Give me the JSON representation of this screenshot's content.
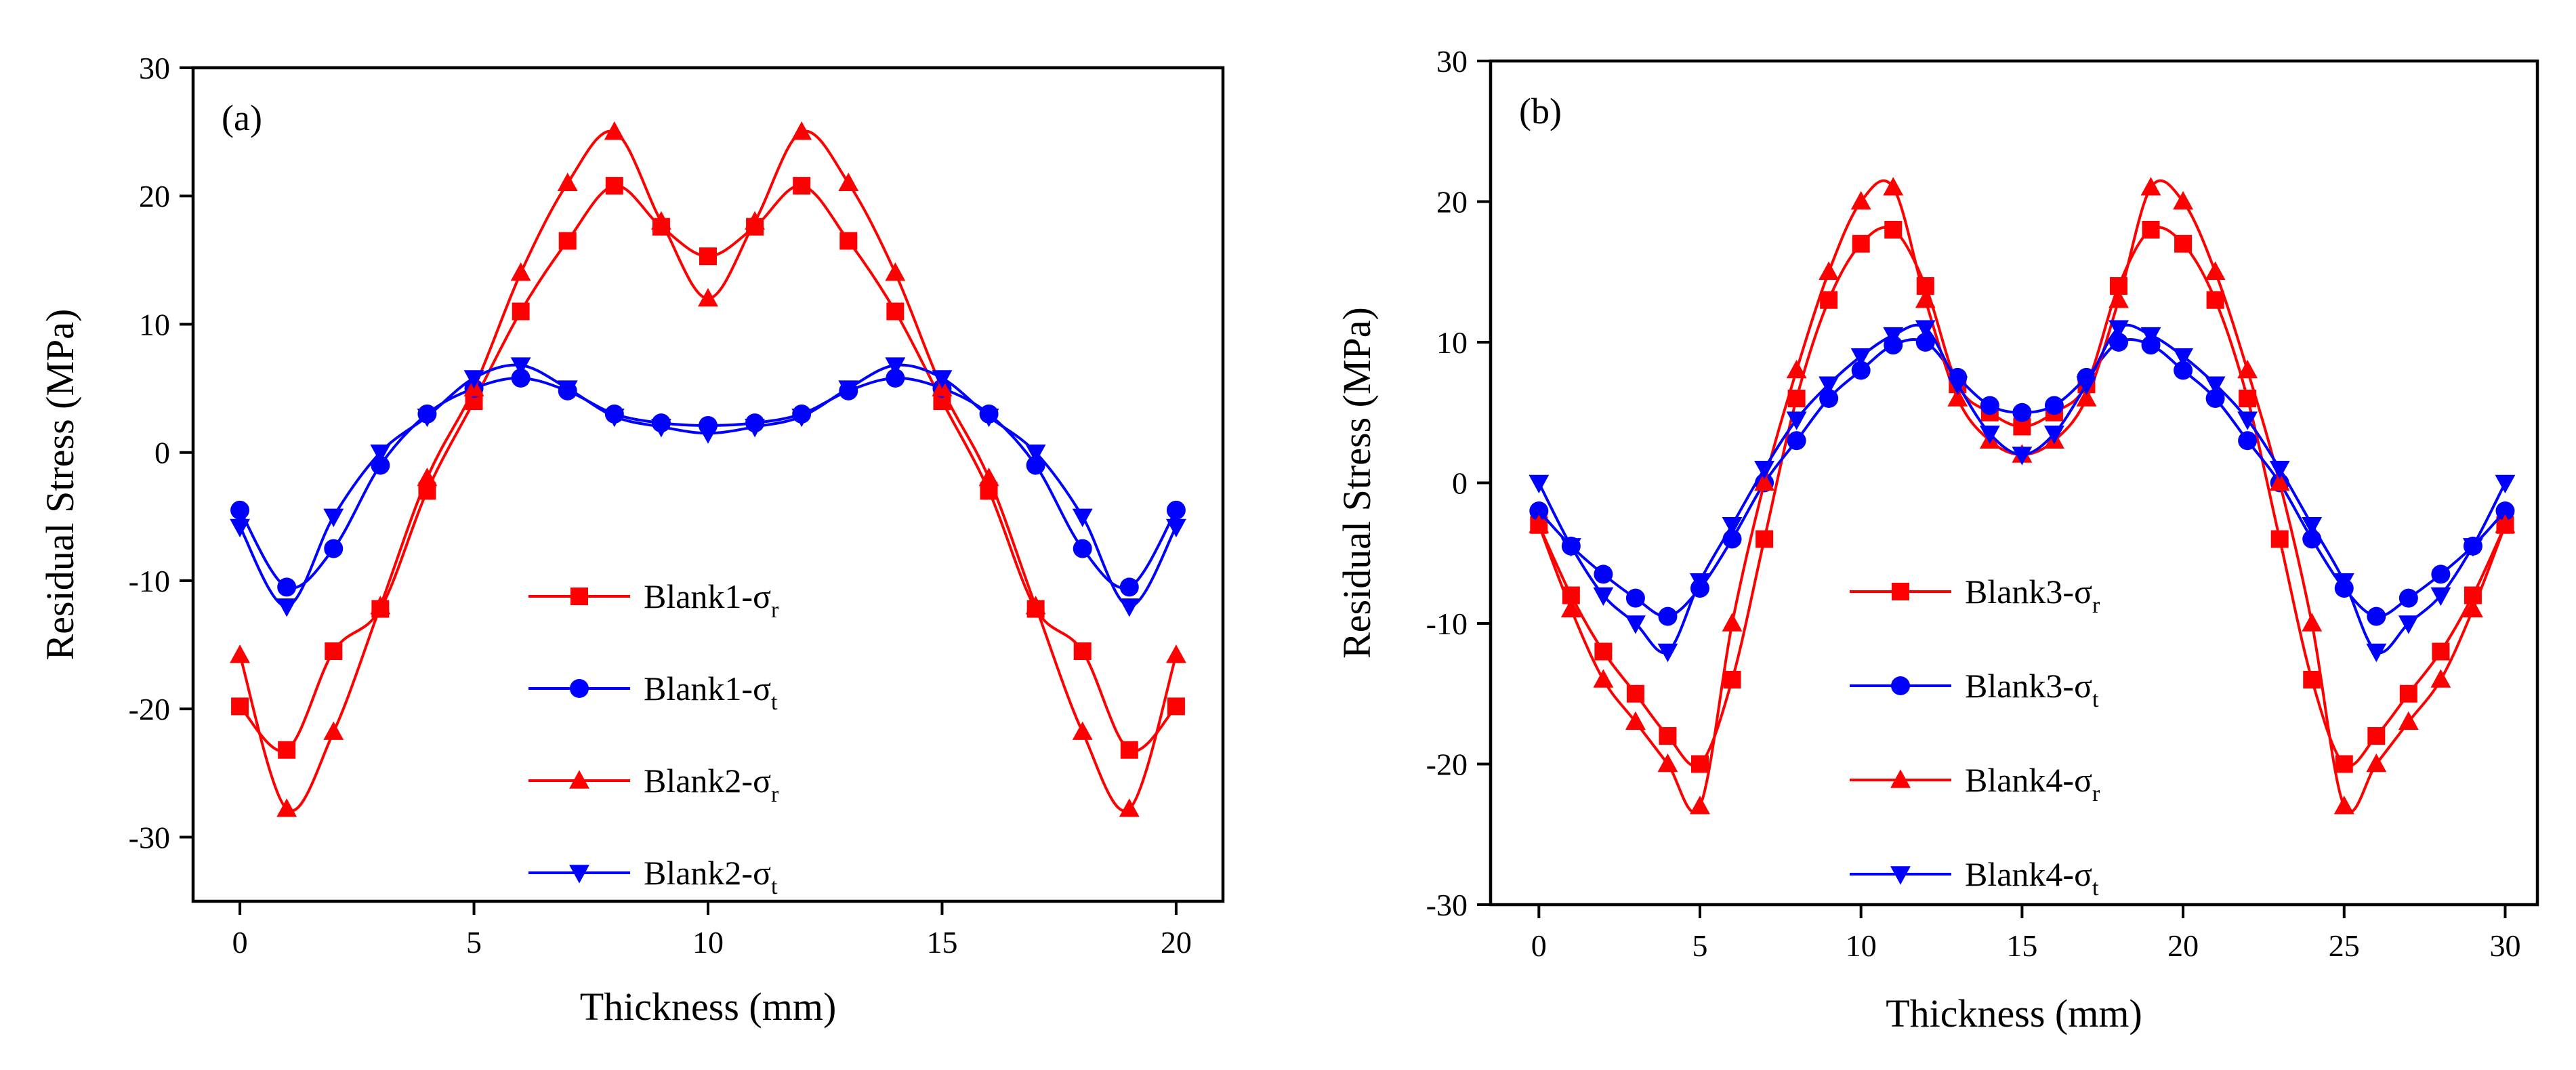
{
  "chart_data": [
    {
      "type": "line",
      "panel_label": "(a)",
      "xlabel": "Thickness (mm)",
      "ylabel": "Residual Stress (MPa)",
      "xlim": [
        -1,
        21
      ],
      "ylim": [
        -35,
        30
      ],
      "xticks": [
        0,
        5,
        10,
        15,
        20
      ],
      "yticks": [
        -30,
        -20,
        -10,
        0,
        10,
        20,
        30
      ],
      "legend_position": "bottom-center",
      "series": [
        {
          "name": "Blank1-σr",
          "base": "Blank1-σ",
          "sub": "r",
          "color": "#ff0000",
          "marker": "square",
          "x": [
            0,
            1,
            2,
            3,
            4,
            5,
            6,
            7,
            8,
            9,
            10,
            11,
            12,
            13,
            14,
            15,
            16,
            17,
            18,
            19,
            20
          ],
          "y": [
            -19.8,
            -23.2,
            -15.5,
            -12.2,
            -3,
            4,
            11,
            16.5,
            20.8,
            17.6,
            15.3,
            17.6,
            20.8,
            16.5,
            11,
            4,
            -3,
            -12.2,
            -15.5,
            -23.2,
            -19.8
          ]
        },
        {
          "name": "Blank1-σt",
          "base": "Blank1-σ",
          "sub": "t",
          "color": "#0000ff",
          "marker": "circle",
          "x": [
            0,
            1,
            2,
            3,
            4,
            5,
            6,
            7,
            8,
            9,
            10,
            11,
            12,
            13,
            14,
            15,
            16,
            17,
            18,
            19,
            20
          ],
          "y": [
            -4.5,
            -10.5,
            -7.5,
            -1,
            3,
            5,
            5.8,
            4.8,
            3,
            2.3,
            2.1,
            2.3,
            3,
            4.8,
            5.8,
            5,
            3,
            -1,
            -7.5,
            -10.5,
            -4.5
          ]
        },
        {
          "name": "Blank2-σr",
          "base": "Blank2-σ",
          "sub": "r",
          "color": "#ff0000",
          "marker": "triangle-up",
          "x": [
            0,
            1,
            2,
            3,
            4,
            5,
            6,
            7,
            8,
            9,
            10,
            11,
            12,
            13,
            14,
            15,
            16,
            17,
            18,
            19,
            20
          ],
          "y": [
            -15.8,
            -27.8,
            -21.8,
            -12,
            -2,
            5,
            14,
            21,
            25,
            18,
            12,
            18,
            25,
            21,
            14,
            5,
            -2,
            -12,
            -21.8,
            -27.8,
            -15.8
          ]
        },
        {
          "name": "Blank2-σt",
          "base": "Blank2-σ",
          "sub": "t",
          "color": "#0000ff",
          "marker": "triangle-down",
          "x": [
            0,
            1,
            2,
            3,
            4,
            5,
            6,
            7,
            8,
            9,
            10,
            11,
            12,
            13,
            14,
            15,
            16,
            17,
            18,
            19,
            20
          ],
          "y": [
            -5.8,
            -12,
            -5,
            0,
            2.8,
            5.8,
            6.8,
            5,
            2.8,
            2,
            1.5,
            2,
            2.8,
            5,
            6.8,
            5.8,
            2.8,
            0,
            -5,
            -12,
            -5.8
          ]
        }
      ]
    },
    {
      "type": "line",
      "panel_label": "(b)",
      "xlabel": "Thickness (mm)",
      "ylabel": "Residual Stress (MPa)",
      "xlim": [
        -1.5,
        31
      ],
      "ylim": [
        -30,
        30
      ],
      "xticks": [
        0,
        5,
        10,
        15,
        20,
        25,
        30
      ],
      "yticks": [
        -30,
        -20,
        -10,
        0,
        10,
        20,
        30
      ],
      "legend_position": "bottom-center",
      "series": [
        {
          "name": "Blank3-σr",
          "base": "Blank3-σ",
          "sub": "r",
          "color": "#ff0000",
          "marker": "square",
          "x": [
            0,
            1,
            2,
            3,
            4,
            5,
            6,
            7,
            8,
            9,
            10,
            11,
            12,
            13,
            14,
            15,
            16,
            17,
            18,
            19,
            20,
            21,
            22,
            23,
            24,
            25,
            26,
            27,
            28,
            29,
            30
          ],
          "y": [
            -3,
            -8,
            -12,
            -15,
            -18,
            -20,
            -14,
            -4,
            6,
            13,
            17,
            18,
            14,
            7,
            5,
            4,
            5,
            7,
            14,
            18,
            17,
            13,
            6,
            -4,
            -14,
            -20,
            -18,
            -15,
            -12,
            -8,
            -3
          ]
        },
        {
          "name": "Blank3-σt",
          "base": "Blank3-σ",
          "sub": "t",
          "color": "#0000ff",
          "marker": "circle",
          "x": [
            0,
            1,
            2,
            3,
            4,
            5,
            6,
            7,
            8,
            9,
            10,
            11,
            12,
            13,
            14,
            15,
            16,
            17,
            18,
            19,
            20,
            21,
            22,
            23,
            24,
            25,
            26,
            27,
            28,
            29,
            30
          ],
          "y": [
            -2,
            -4.5,
            -6.5,
            -8.2,
            -9.5,
            -7.5,
            -4,
            0,
            3,
            6,
            8,
            9.8,
            10,
            7.5,
            5.5,
            5,
            5.5,
            7.5,
            10,
            9.8,
            8,
            6,
            3,
            0,
            -4,
            -7.5,
            -9.5,
            -8.2,
            -6.5,
            -4.5,
            -2
          ]
        },
        {
          "name": "Blank4-σr",
          "base": "Blank4-σ",
          "sub": "r",
          "color": "#ff0000",
          "marker": "triangle-up",
          "x": [
            0,
            1,
            2,
            3,
            4,
            5,
            6,
            7,
            8,
            9,
            10,
            11,
            12,
            13,
            14,
            15,
            16,
            17,
            18,
            19,
            20,
            21,
            22,
            23,
            24,
            25,
            26,
            27,
            28,
            29,
            30
          ],
          "y": [
            -3,
            -9,
            -14,
            -17,
            -20,
            -23,
            -10,
            0,
            8,
            15,
            20,
            21,
            13,
            6,
            3,
            2,
            3,
            6,
            13,
            21,
            20,
            15,
            8,
            0,
            -10,
            -23,
            -20,
            -17,
            -14,
            -9,
            -3
          ]
        },
        {
          "name": "Blank4-σt",
          "base": "Blank4-σ",
          "sub": "t",
          "color": "#0000ff",
          "marker": "triangle-down",
          "x": [
            0,
            1,
            2,
            3,
            4,
            5,
            6,
            7,
            8,
            9,
            10,
            11,
            12,
            13,
            14,
            15,
            16,
            17,
            18,
            19,
            20,
            21,
            22,
            23,
            24,
            25,
            26,
            27,
            28,
            29,
            30
          ],
          "y": [
            0,
            -4.5,
            -8,
            -10,
            -12,
            -7,
            -3,
            1,
            4.5,
            7,
            9,
            10.5,
            11,
            7,
            3.5,
            2,
            3.5,
            7,
            11,
            10.5,
            9,
            7,
            4.5,
            1,
            -3,
            -7,
            -12,
            -10,
            -8,
            -4.5,
            0
          ]
        }
      ]
    }
  ]
}
